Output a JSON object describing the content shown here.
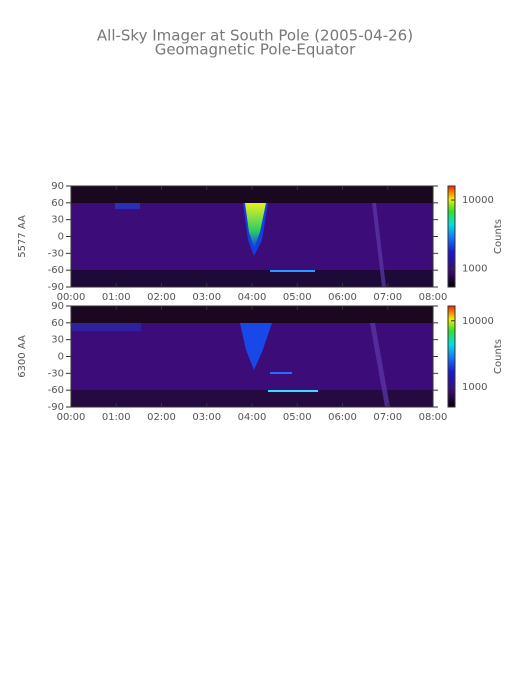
{
  "header": {
    "title": "All-Sky Imager at South Pole (2005-04-26)",
    "subtitle": "Geomagnetic Pole-Equator"
  },
  "chart_data": [
    {
      "type": "keogram",
      "y_label": "5577 AA",
      "colorbar_label": "Counts",
      "xticks": [
        "00:00",
        "01:00",
        "02:00",
        "03:00",
        "04:00",
        "05:00",
        "06:00",
        "07:00",
        "08:00"
      ],
      "ylim": [
        -90,
        90
      ],
      "yticks": [
        -90,
        -60,
        -30,
        0,
        30,
        60,
        90
      ],
      "clim": [
        540,
        16000
      ],
      "colorbar_ticks": [
        1000,
        10000
      ],
      "log_scale": true
    },
    {
      "type": "keogram",
      "y_label": "6300 AA",
      "colorbar_label": "Counts",
      "xticks": [
        "00:00",
        "01:00",
        "02:00",
        "03:00",
        "04:00",
        "05:00",
        "06:00",
        "07:00",
        "08:00"
      ],
      "ylim": [
        -90,
        90
      ],
      "yticks": [
        -90,
        -60,
        -30,
        0,
        30,
        60,
        90
      ],
      "clim": [
        500,
        16700
      ],
      "colorbar_ticks": [
        1000,
        10000
      ],
      "log_scale": true
    }
  ]
}
